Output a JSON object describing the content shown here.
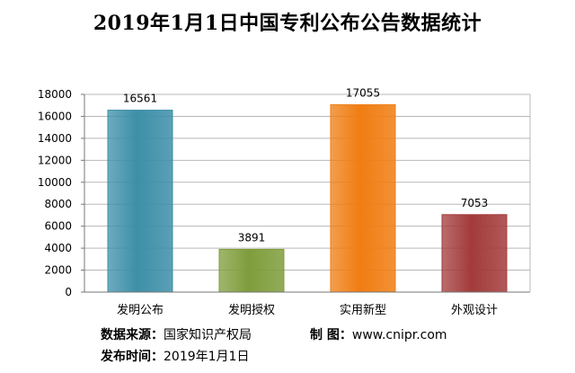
{
  "chart_data": {
    "type": "bar",
    "title": "2019年1月1日中国专利公布公告数据统计",
    "categories": [
      "发明公布",
      "发明授权",
      "实用新型",
      "外观设计"
    ],
    "values": [
      16561,
      3891,
      17055,
      7053
    ],
    "ylim": [
      0,
      18000
    ],
    "yticks": [
      0,
      2000,
      4000,
      6000,
      8000,
      10000,
      12000,
      14000,
      16000,
      18000
    ],
    "grid": true,
    "colors": [
      "#3d8fa8",
      "#7f9d3c",
      "#f07d12",
      "#a33b3b"
    ]
  },
  "footer": {
    "source_label": "数据来源：",
    "source_value": "国家知识产权局",
    "credit_label": "制  图：",
    "credit_value": "www.cnipr.com",
    "date_label": "发布时间：",
    "date_value": "2019年1月1日"
  }
}
